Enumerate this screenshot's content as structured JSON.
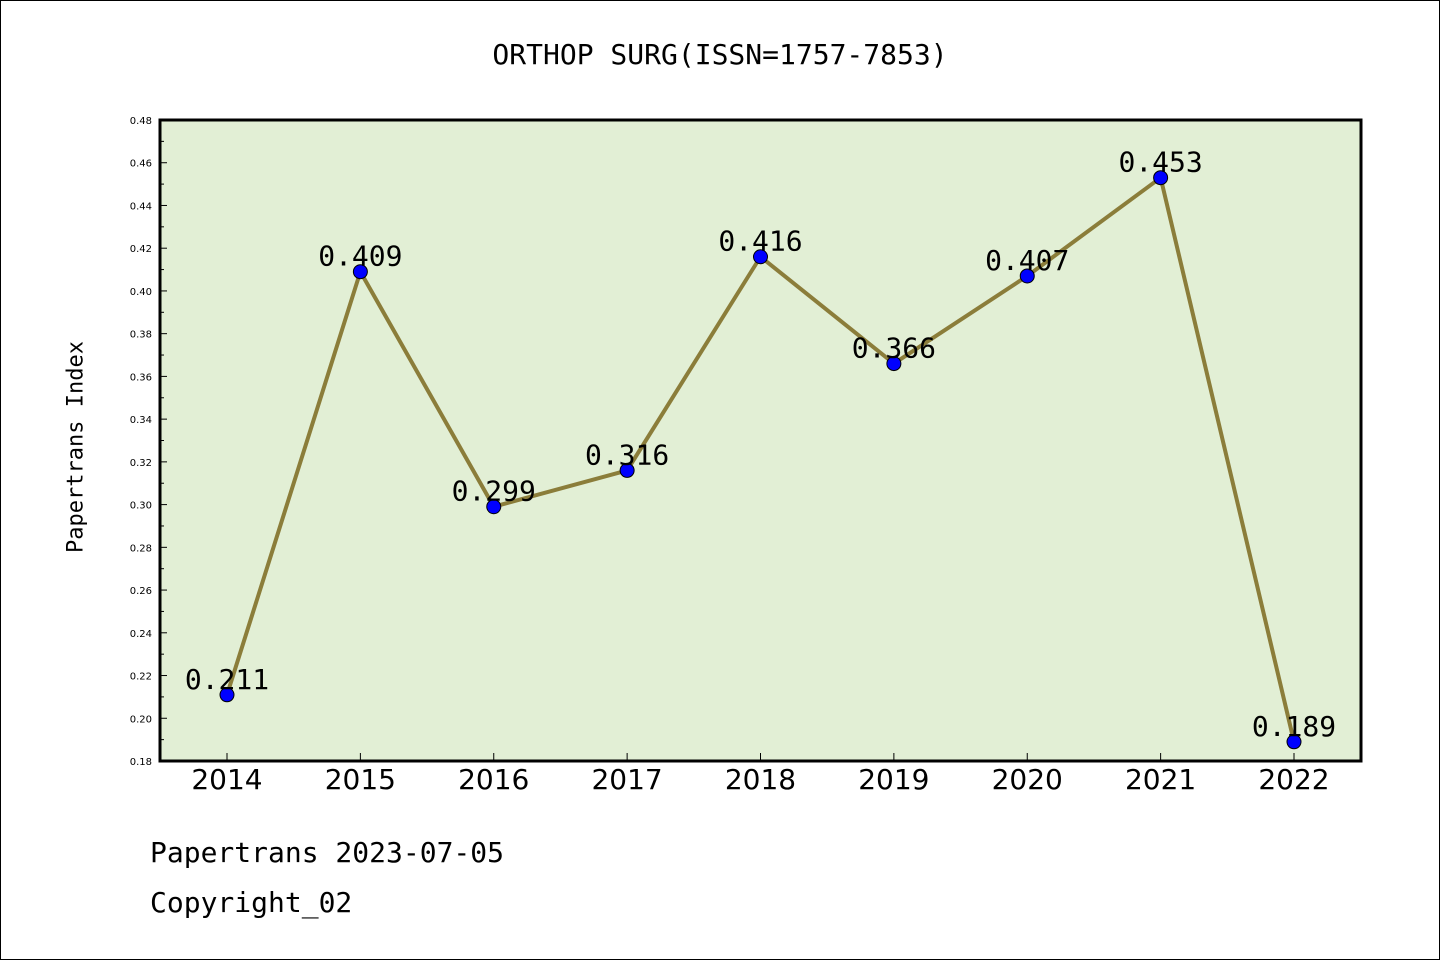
{
  "chart_data": {
    "type": "line",
    "title": "ORTHOP SURG(ISSN=1757-7853)",
    "xlabel": "",
    "ylabel": "Papertrans Index",
    "categories": [
      "2014",
      "2015",
      "2016",
      "2017",
      "2018",
      "2019",
      "2020",
      "2021",
      "2022"
    ],
    "series": [
      {
        "values": [
          0.211,
          0.409,
          0.299,
          0.316,
          0.416,
          0.366,
          0.407,
          0.453,
          0.189
        ],
        "data_labels": [
          "0.211",
          "0.409",
          "0.299",
          "0.316",
          "0.416",
          "0.366",
          "0.407",
          "0.453",
          "0.189"
        ],
        "line_color": "#8b7d3a",
        "marker_color": "#0000ff"
      }
    ],
    "ylim": [
      0.18,
      0.48
    ],
    "y_ticks": [
      "0.18",
      "0.20",
      "0.22",
      "0.24",
      "0.26",
      "0.28",
      "0.30",
      "0.32",
      "0.34",
      "0.36",
      "0.38",
      "0.40",
      "0.42",
      "0.44",
      "0.46",
      "0.48"
    ],
    "grid": false,
    "legend": "none",
    "plot_background": "#e2efd5"
  },
  "footer": {
    "date_line": "Papertrans 2023-07-05",
    "copyright_line": "Copyright_02"
  }
}
